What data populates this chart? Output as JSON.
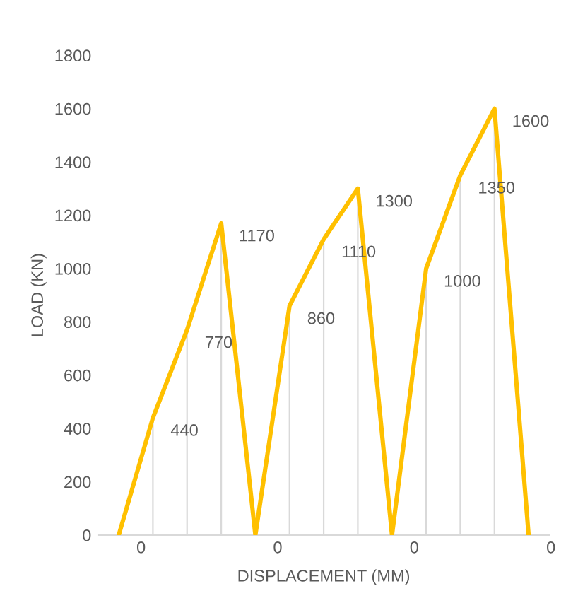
{
  "chart_data": {
    "type": "line",
    "xlabel": "DISPLACEMENT (MM)",
    "ylabel": "LOAD (KN)",
    "categories": [
      null,
      null,
      null,
      null,
      null,
      null,
      null,
      null,
      null,
      null,
      null,
      null,
      null
    ],
    "series": [
      {
        "color": "#ffc000",
        "values": [
          0,
          440,
          770,
          1170,
          0,
          860,
          1110,
          1300,
          0,
          1000,
          1350,
          1600,
          0
        ]
      }
    ],
    "ylim": [
      0,
      1800
    ],
    "yticks": [
      0,
      200,
      400,
      600,
      800,
      1000,
      1200,
      1400,
      1600,
      1800
    ],
    "grid": "x",
    "marker": "none",
    "line_style": "solid",
    "data_labels": true
  }
}
